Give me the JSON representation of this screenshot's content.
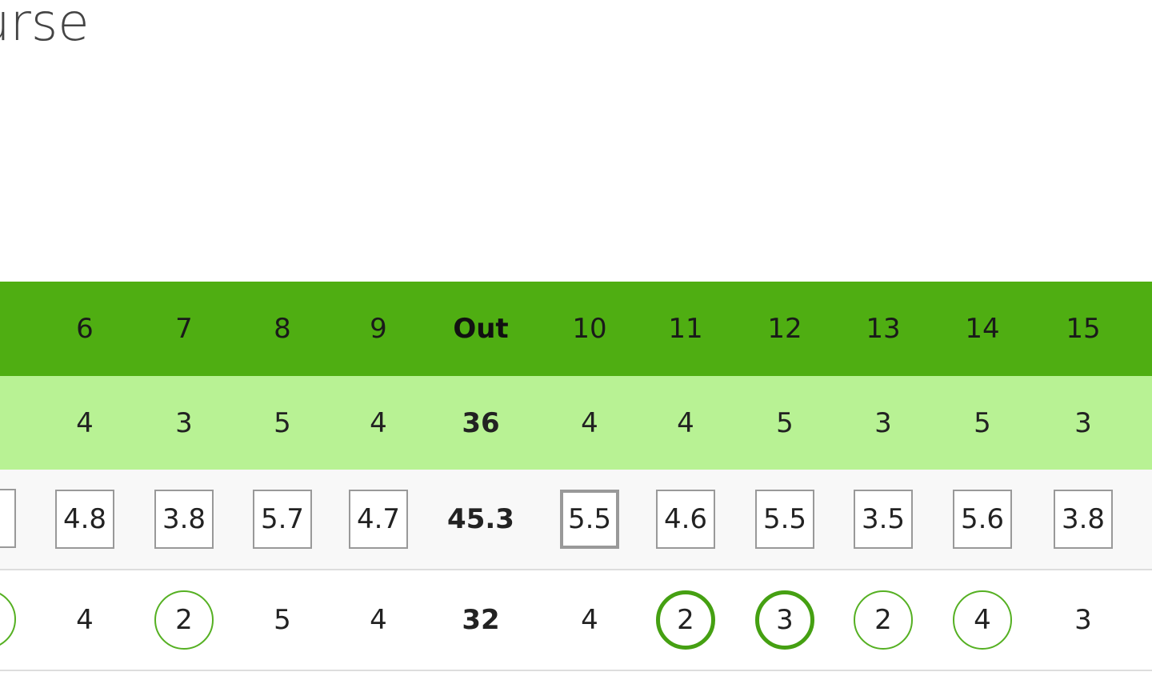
{
  "header": {
    "title": "urse"
  },
  "table": {
    "holes": [
      "6",
      "7",
      "8",
      "9",
      "Out",
      "10",
      "11",
      "12",
      "13",
      "14",
      "15"
    ],
    "par": [
      "4",
      "3",
      "5",
      "4",
      "36",
      "4",
      "4",
      "5",
      "3",
      "5",
      "3"
    ],
    "average": [
      "4.8",
      "3.8",
      "5.7",
      "4.7",
      "45.3",
      "5.5",
      "4.6",
      "5.5",
      "3.5",
      "5.6",
      "3.8"
    ],
    "score": [
      "4",
      "2",
      "5",
      "4",
      "32",
      "4",
      "2",
      "3",
      "2",
      "4",
      "3"
    ]
  }
}
